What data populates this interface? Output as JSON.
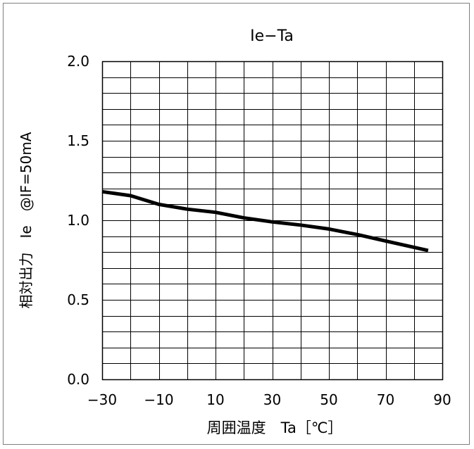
{
  "chart_data": {
    "type": "line",
    "title": "Ie−Ta",
    "xlabel": "周囲温度　Ta［℃］",
    "ylabel": "相対出力　Ie　@IF=50mA",
    "xlim": [
      -30,
      90
    ],
    "ylim": [
      0.0,
      2.0
    ],
    "x_ticks": [
      "−30",
      "−10",
      "10",
      "30",
      "50",
      "70",
      "90"
    ],
    "y_ticks": [
      "2.0",
      "1.5",
      "1.0",
      "0.5",
      "0.0"
    ],
    "x_tick_values": [
      -30,
      -10,
      10,
      30,
      50,
      70,
      90
    ],
    "y_tick_values": [
      2.0,
      1.5,
      1.0,
      0.5,
      0.0
    ],
    "x_major_step": 10,
    "y_minor_step": 0.1,
    "grid": true,
    "series": [
      {
        "color": "#000000",
        "x": [
          -30,
          -20,
          -10,
          0,
          10,
          20,
          30,
          40,
          50,
          60,
          70,
          80,
          85
        ],
        "y": [
          1.18,
          1.155,
          1.1,
          1.07,
          1.05,
          1.015,
          0.99,
          0.97,
          0.945,
          0.91,
          0.87,
          0.83,
          0.81
        ]
      }
    ]
  }
}
